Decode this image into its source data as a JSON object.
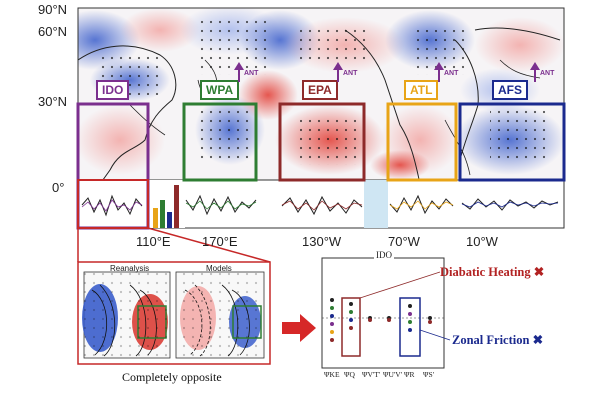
{
  "map": {
    "lat_labels": [
      "90°N",
      "60°N",
      "30°N",
      "0°"
    ],
    "lon_labels": [
      "110°E",
      "170°E",
      "130°W",
      "70°W",
      "10°W"
    ],
    "regions": [
      {
        "id": "IDO",
        "label": "IDO",
        "color": "#7b2f8e",
        "ant": false
      },
      {
        "id": "WPA",
        "label": "WPA",
        "color": "#2e7d32",
        "ant": true
      },
      {
        "id": "EPA",
        "label": "EPA",
        "color": "#8e2a2a",
        "ant": true
      },
      {
        "id": "ATL",
        "label": "ATL",
        "color": "#e8a417",
        "ant": true
      },
      {
        "id": "AFS",
        "label": "AFS",
        "color": "#1b2a8e",
        "ant": true
      }
    ],
    "ant_label": "ANT",
    "colors": {
      "warm": "#d9342b",
      "cool": "#2f4fbf"
    }
  },
  "inset": {
    "panel_titles": [
      "Reanalysis",
      "Models"
    ],
    "caption": "Completely opposite"
  },
  "diagnostics": {
    "title": "IDO",
    "x_labels": [
      "ΨKE",
      "ΨQ",
      "ΨV'T'",
      "ΨU'V'",
      "ΨR",
      "ΨS'"
    ],
    "legend": [
      {
        "text": "Diabatic Heating",
        "marker": "✖",
        "color": "#b22222"
      },
      {
        "text": "Zonal Friction",
        "marker": "✖",
        "color": "#1b2a8e"
      }
    ]
  }
}
